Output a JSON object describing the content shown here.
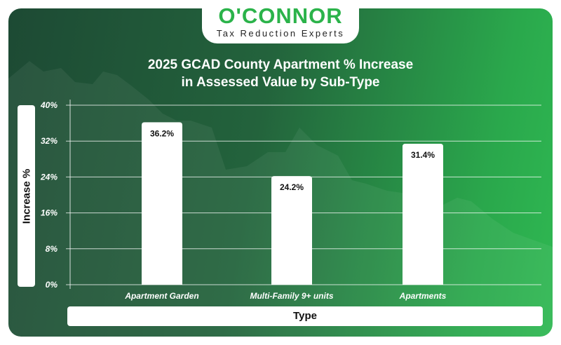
{
  "logo": {
    "brand": "O'CONNOR",
    "tagline": "Tax Reduction Experts"
  },
  "colors": {
    "background_dark": "#1d4a34",
    "background_light": "#2fb852",
    "bar": "#ffffff",
    "brand_green": "#2bb34a"
  },
  "chart_data": {
    "type": "bar",
    "title_line1": "2025 GCAD County Apartment % Increase",
    "title_line2": "in Assessed Value by Sub-Type",
    "xlabel": "Type",
    "ylabel": "Increase %",
    "categories": [
      "Apartment Garden",
      "Multi-Family 9+ units",
      "Apartments"
    ],
    "values": [
      36.2,
      24.2,
      31.4
    ],
    "data_labels": [
      "36.2%",
      "24.2%",
      "31.4%"
    ],
    "ylim": [
      0,
      40
    ],
    "yticks": [
      0,
      8,
      16,
      24,
      32,
      40
    ],
    "ytick_labels": [
      "0%",
      "8%",
      "16%",
      "24%",
      "32%",
      "40%"
    ],
    "grid": true,
    "legend": "none"
  }
}
